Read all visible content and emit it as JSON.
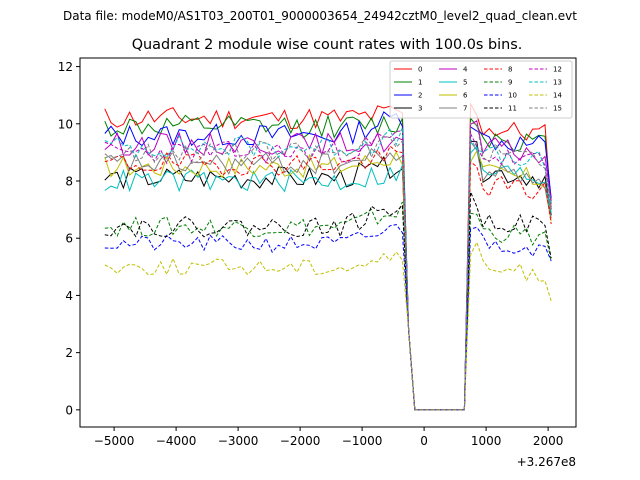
{
  "chart_data": {
    "type": "line",
    "suptitle": "Data file: modeM0/AS1T03_200T01_9000003654_24942cztM0_level2_quad_clean.evt",
    "title": "Quadrant 2 module wise count rates with 100.0s bins.",
    "xlabel": "",
    "ylabel": "",
    "x_offset_text": "+3.267e8",
    "xlim": [
      -5550,
      2450
    ],
    "ylim": [
      -0.6,
      12.3
    ],
    "xticks": [
      -5000,
      -4000,
      -3000,
      -2000,
      -1000,
      0,
      1000,
      2000
    ],
    "xtick_labels": [
      "−5000",
      "−4000",
      "−3000",
      "−2000",
      "−1000",
      "0",
      "1000",
      "2000"
    ],
    "yticks": [
      0,
      2,
      4,
      6,
      8,
      10,
      12
    ],
    "ytick_labels": [
      "0",
      "2",
      "4",
      "6",
      "8",
      "10",
      "12"
    ],
    "legend_location": "upper-right",
    "time": {
      "first_start": -5150,
      "first_end": -350,
      "step": 100,
      "drop_x": -250,
      "drop_y": 2.8,
      "zero_start": -150,
      "zero_end": 650,
      "second_start": 750,
      "second_end": 2050
    },
    "series": [
      {
        "name": "0",
        "color": "#ff0000",
        "dash": "solid",
        "base1": 10.2,
        "amp": 0.4,
        "end1": 10.4,
        "base2": 9.9,
        "last": 7.0
      },
      {
        "name": "1",
        "color": "#008000",
        "dash": "solid",
        "base1": 9.9,
        "amp": 0.4,
        "end1": 10.0,
        "base2": 9.6,
        "last": 7.2
      },
      {
        "name": "2",
        "color": "#0000ff",
        "dash": "solid",
        "base1": 9.6,
        "amp": 0.4,
        "end1": 10.3,
        "base2": 9.5,
        "last": 7.4
      },
      {
        "name": "3",
        "color": "#000000",
        "dash": "solid",
        "base1": 8.1,
        "amp": 0.4,
        "end1": 8.6,
        "base2": 8.4,
        "last": 6.8
      },
      {
        "name": "4",
        "color": "#bf00bf",
        "dash": "solid",
        "base1": 9.3,
        "amp": 0.4,
        "end1": 9.4,
        "base2": 9.2,
        "last": 7.3
      },
      {
        "name": "5",
        "color": "#00bfbf",
        "dash": "solid",
        "base1": 8.0,
        "amp": 0.4,
        "end1": 8.3,
        "base2": 8.4,
        "last": 6.9
      },
      {
        "name": "6",
        "color": "#bfbf00",
        "dash": "solid",
        "base1": 8.5,
        "amp": 0.4,
        "end1": 8.9,
        "base2": 8.3,
        "last": 6.6
      },
      {
        "name": "7",
        "color": "#808080",
        "dash": "solid",
        "base1": 8.6,
        "amp": 0.4,
        "end1": 9.0,
        "base2": 8.4,
        "last": 6.7
      },
      {
        "name": "8",
        "color": "#ff0000",
        "dash": "dashed",
        "base1": 8.6,
        "amp": 0.4,
        "end1": 8.9,
        "base2": 7.9,
        "last": 6.5
      },
      {
        "name": "9",
        "color": "#008000",
        "dash": "dashed",
        "base1": 6.4,
        "amp": 0.35,
        "end1": 7.0,
        "base2": 6.3,
        "last": 5.2
      },
      {
        "name": "10",
        "color": "#0000ff",
        "dash": "dashed",
        "base1": 5.8,
        "amp": 0.3,
        "end1": 6.4,
        "base2": 5.9,
        "last": 5.2
      },
      {
        "name": "11",
        "color": "#000000",
        "dash": "dashed",
        "base1": 6.4,
        "amp": 0.35,
        "end1": 7.2,
        "base2": 6.7,
        "last": 5.3
      },
      {
        "name": "12",
        "color": "#bf00bf",
        "dash": "dashed",
        "base1": 9.0,
        "amp": 0.4,
        "end1": 9.6,
        "base2": 8.9,
        "last": 7.1
      },
      {
        "name": "13",
        "color": "#00bfbf",
        "dash": "dashed",
        "base1": 9.2,
        "amp": 0.4,
        "end1": 9.5,
        "base2": 8.9,
        "last": 7.2
      },
      {
        "name": "14",
        "color": "#bfbf00",
        "dash": "dashed",
        "base1": 5.0,
        "amp": 0.3,
        "end1": 5.4,
        "base2": 5.0,
        "last": 3.8
      },
      {
        "name": "15",
        "color": "#808080",
        "dash": "dashed",
        "base1": 9.0,
        "amp": 0.4,
        "end1": 9.4,
        "base2": 9.1,
        "last": 7.0
      }
    ]
  }
}
